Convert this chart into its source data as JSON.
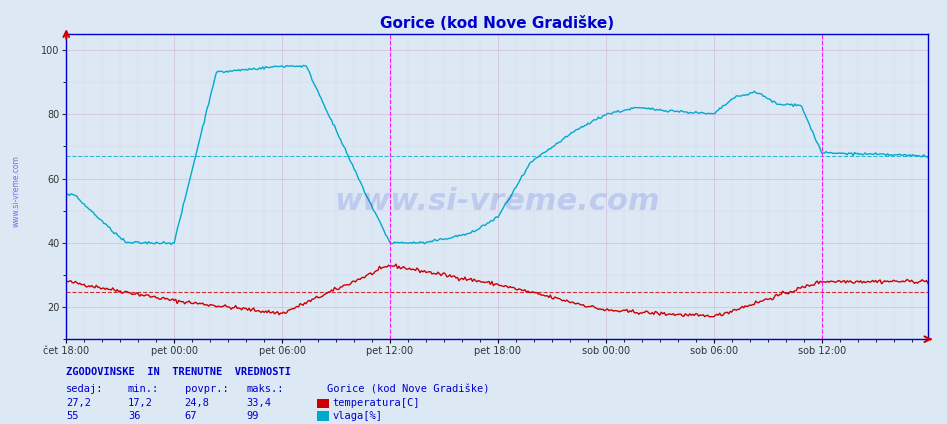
{
  "title": "Gorice (kod Nove Gradiške)",
  "bg_color": "#dce9f5",
  "temp_color": "#cc0000",
  "vlaga_color": "#00aacc",
  "temp_avg": 24.8,
  "vlaga_avg": 67.0,
  "ylim": [
    10,
    105
  ],
  "yticks": [
    20,
    40,
    60,
    80,
    100
  ],
  "x_tick_labels": [
    "čet 18:00",
    "pet 00:00",
    "pet 06:00",
    "pet 12:00",
    "pet 18:00",
    "sob 00:00",
    "sob 06:00",
    "sob 12:00"
  ],
  "x_tick_positions": [
    0,
    72,
    144,
    216,
    288,
    360,
    432,
    504
  ],
  "total_points": 576,
  "vertical_lines": [
    216,
    504
  ],
  "footer_label1": "ZGODOVINSKE  IN  TRENUTNE  VREDNOSTI",
  "footer_temp": [
    "27,2",
    "17,2",
    "24,8",
    "33,4"
  ],
  "footer_vlaga": [
    "55",
    "36",
    "67",
    "99"
  ],
  "footer_station": "Gorice (kod Nove Gradiške)",
  "watermark": "www.si-vreme.com",
  "sidebar_text": "www.si-vreme.com"
}
